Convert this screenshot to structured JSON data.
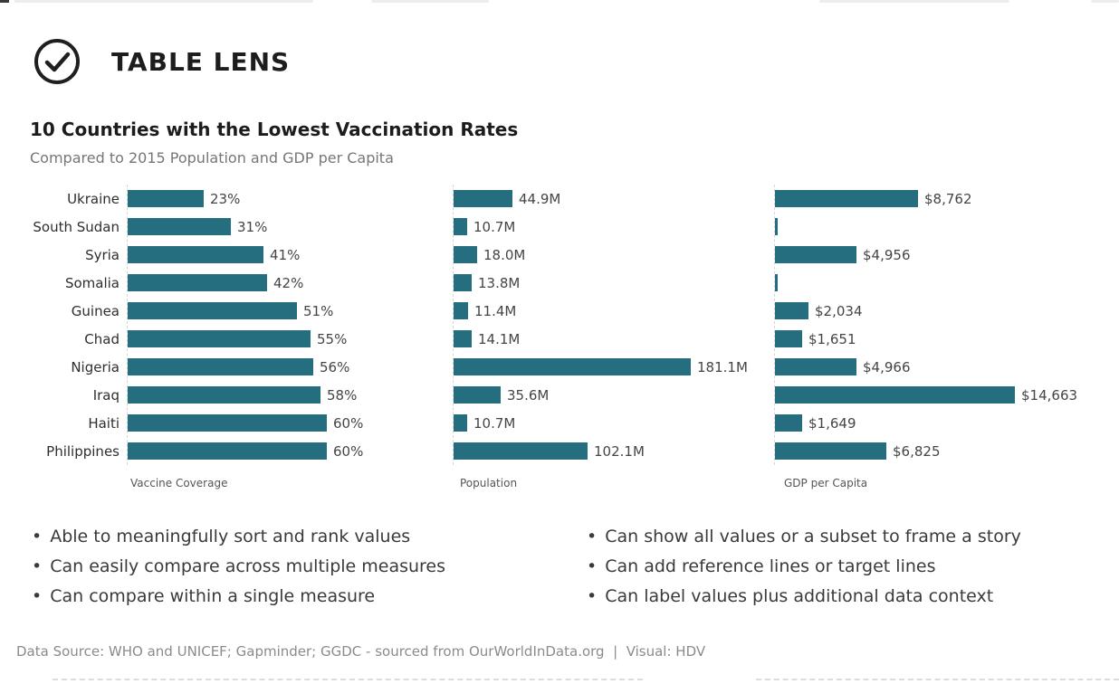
{
  "header": {
    "title": "TABLE LENS",
    "icon": "check-circle-icon"
  },
  "chart": {
    "title": "10 Countries with the Lowest Vaccination Rates",
    "subtitle": "Compared to 2015 Population and GDP per Capita"
  },
  "chart_data": {
    "type": "bar",
    "orientation": "horizontal",
    "grid": false,
    "legend_position": "none",
    "bar_color": "#256e80",
    "categories": [
      "Ukraine",
      "South Sudan",
      "Syria",
      "Somalia",
      "Guinea",
      "Chad",
      "Nigeria",
      "Iraq",
      "Haiti",
      "Philippines"
    ],
    "series": [
      {
        "name": "Vaccine Coverage",
        "values": [
          23,
          31,
          41,
          42,
          51,
          55,
          56,
          58,
          60,
          60
        ],
        "labels": [
          "23%",
          "31%",
          "41%",
          "42%",
          "51%",
          "55%",
          "56%",
          "58%",
          "60%",
          "60%"
        ],
        "axis_max": 60
      },
      {
        "name": "Population",
        "values": [
          44.9,
          10.7,
          18.0,
          13.8,
          11.4,
          14.1,
          181.1,
          35.6,
          10.7,
          102.1
        ],
        "labels": [
          "44.9M",
          "10.7M",
          "18.0M",
          "13.8M",
          "11.4M",
          "14.1M",
          "181.1M",
          "35.6M",
          "10.7M",
          "102.1M"
        ],
        "axis_max": 181.1
      },
      {
        "name": "GDP per Capita",
        "values": [
          8762,
          null,
          4956,
          null,
          2034,
          1651,
          4966,
          14663,
          1649,
          6825
        ],
        "labels": [
          "$8,762",
          "",
          "$4,956",
          "",
          "$2,034",
          "$1,651",
          "$4,966",
          "$14,663",
          "$1,649",
          "$6,825"
        ],
        "axis_max": 14663
      }
    ]
  },
  "bullets": {
    "left": [
      "Able to meaningfully sort and rank values",
      "Can easily compare across multiple measures",
      "Can compare within a single measure"
    ],
    "right": [
      "Can show all values or a subset to frame a story",
      "Can add reference lines or target lines",
      "Can label values plus additional data context"
    ]
  },
  "footer": {
    "source": "Data Source: WHO and UNICEF; Gapminder; GGDC - sourced from OurWorldInData.org  |  Visual: HDV"
  }
}
